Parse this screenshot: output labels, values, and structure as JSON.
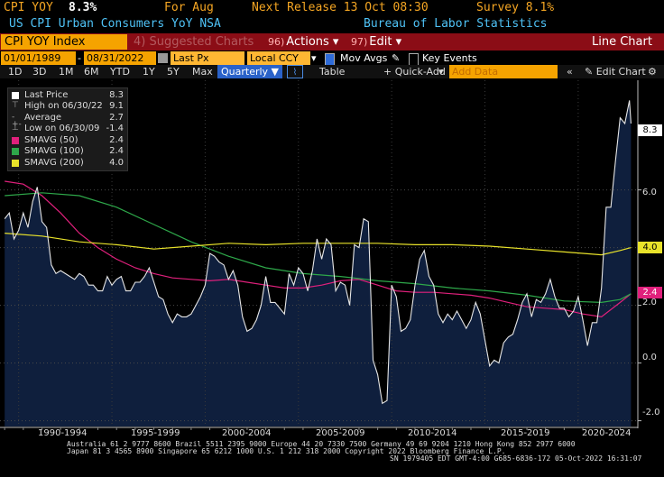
{
  "header": {
    "ticker": "CPI YOY",
    "last": "8.3%",
    "for_label": "For Aug",
    "next_release": "Next Release 13 Oct 08:30",
    "survey": "Survey 8.1%",
    "description": "US CPI Urban Consumers YoY NSA",
    "source": "Bureau of Labor Statistics"
  },
  "toolbar": {
    "index_name": "CPI YOY Index",
    "suggested": "Suggested Charts",
    "actions_num": "96)",
    "actions_label": "Actions",
    "edit_num": "97)",
    "edit_label": "Edit",
    "chart_type": "Line Chart"
  },
  "range": {
    "start": "01/01/1989",
    "end": "08/31/2022",
    "price_field": "Last Px",
    "currency": "Local CCY",
    "mov_avgs": "Mov Avgs",
    "key_events": "Key Events"
  },
  "periods": {
    "items": [
      "1D",
      "3D",
      "1M",
      "6M",
      "YTD",
      "1Y",
      "5Y",
      "Max"
    ],
    "frequency": "Quarterly",
    "table": "Table",
    "quick_add": "+ Quick-Add",
    "add_data_placeholder": "Add Data",
    "edit_chart": "Edit Chart"
  },
  "legend": [
    {
      "label": "Last Price",
      "value": "8.3",
      "color": "#ffffff"
    },
    {
      "label": "High on 06/30/22",
      "value": "9.1",
      "color": "#aaaaaa"
    },
    {
      "label": "Average",
      "value": "2.7",
      "color": "#aaaaaa"
    },
    {
      "label": "Low on 06/30/09",
      "value": "-1.4",
      "color": "#aaaaaa"
    },
    {
      "label": "SMAVG (50)",
      "value": "2.4",
      "color": "#e0207c"
    },
    {
      "label": "SMAVG (100)",
      "value": "2.4",
      "color": "#2ea84a"
    },
    {
      "label": "SMAVG (200)",
      "value": "4.0",
      "color": "#e8e22a"
    }
  ],
  "tags": {
    "last": "8.3",
    "sma200": "4.0",
    "sma50": "2.4"
  },
  "footer": {
    "line1": "Australia 61 2 9777 8600 Brazil 5511 2395 9000 Europe 44 20 7330 7500 Germany 49 69 9204 1210 Hong Kong 852 2977 6000",
    "line2": "Japan 81 3 4565 8900        Singapore 65 6212 1000        U.S. 1 212 318 2000           Copyright 2022 Bloomberg Finance L.P.",
    "line3": "SN 1979405 EDT  GMT-4:00 G685-6836-172 05-Oct-2022 16:31:07"
  },
  "colors": {
    "amber": "#f5a623",
    "red_bar": "#8b0d16",
    "area": "#0f1f3d",
    "sma50": "#e0207c",
    "sma100": "#2ea84a",
    "sma200": "#e8e22a"
  },
  "chart_data": {
    "type": "area",
    "title": "US CPI Urban Consumers YoY NSA",
    "x_labels": [
      "1990-1994",
      "1995-1999",
      "2000-2004",
      "2005-2009",
      "2010-2014",
      "2015-2019",
      "2020-2024"
    ],
    "y_ticks": [
      -2.0,
      0.0,
      2.0,
      4.0,
      6.0
    ],
    "ylim": [
      -2.2,
      9.8
    ],
    "xlim": [
      1988.75,
      2022.9
    ],
    "series": [
      {
        "name": "Last Price",
        "x": [
          1989.0,
          1989.25,
          1989.5,
          1989.75,
          1990.0,
          1990.25,
          1990.5,
          1990.75,
          1991.0,
          1991.25,
          1991.5,
          1991.75,
          1992.0,
          1992.25,
          1992.5,
          1992.75,
          1993.0,
          1993.25,
          1993.5,
          1993.75,
          1994.0,
          1994.25,
          1994.5,
          1994.75,
          1995.0,
          1995.25,
          1995.5,
          1995.75,
          1996.0,
          1996.25,
          1996.5,
          1996.75,
          1997.0,
          1997.25,
          1997.5,
          1997.75,
          1998.0,
          1998.25,
          1998.5,
          1998.75,
          1999.0,
          1999.25,
          1999.5,
          1999.75,
          2000.0,
          2000.25,
          2000.5,
          2000.75,
          2001.0,
          2001.25,
          2001.5,
          2001.75,
          2002.0,
          2002.25,
          2002.5,
          2002.75,
          2003.0,
          2003.25,
          2003.5,
          2003.75,
          2004.0,
          2004.25,
          2004.5,
          2004.75,
          2005.0,
          2005.25,
          2005.5,
          2005.75,
          2006.0,
          2006.25,
          2006.5,
          2006.75,
          2007.0,
          2007.25,
          2007.5,
          2007.75,
          2008.0,
          2008.25,
          2008.5,
          2008.75,
          2009.0,
          2009.25,
          2009.5,
          2009.75,
          2010.0,
          2010.25,
          2010.5,
          2010.75,
          2011.0,
          2011.25,
          2011.5,
          2011.75,
          2012.0,
          2012.25,
          2012.5,
          2012.75,
          2013.0,
          2013.25,
          2013.5,
          2013.75,
          2014.0,
          2014.25,
          2014.5,
          2014.75,
          2015.0,
          2015.25,
          2015.5,
          2015.75,
          2016.0,
          2016.25,
          2016.5,
          2016.75,
          2017.0,
          2017.25,
          2017.5,
          2017.75,
          2018.0,
          2018.25,
          2018.5,
          2018.75,
          2019.0,
          2019.25,
          2019.5,
          2019.75,
          2020.0,
          2020.25,
          2020.5,
          2020.75,
          2021.0,
          2021.25,
          2021.5,
          2021.75,
          2022.0,
          2022.25,
          2022.5,
          2022.58
        ],
        "values": [
          5.0,
          5.2,
          4.3,
          4.6,
          5.2,
          4.7,
          5.6,
          6.1,
          4.9,
          4.7,
          3.4,
          3.1,
          3.2,
          3.1,
          3.0,
          2.9,
          3.1,
          3.0,
          2.7,
          2.7,
          2.5,
          2.5,
          3.0,
          2.7,
          2.9,
          3.0,
          2.5,
          2.5,
          2.8,
          2.8,
          3.0,
          3.3,
          2.8,
          2.3,
          2.2,
          1.7,
          1.4,
          1.7,
          1.6,
          1.6,
          1.7,
          2.0,
          2.3,
          2.7,
          3.8,
          3.7,
          3.5,
          3.4,
          2.9,
          3.2,
          2.7,
          1.6,
          1.1,
          1.2,
          1.5,
          2.0,
          3.0,
          2.1,
          2.1,
          1.9,
          1.7,
          3.1,
          2.7,
          3.3,
          3.1,
          2.5,
          3.2,
          4.3,
          3.6,
          4.3,
          4.1,
          2.5,
          2.8,
          2.7,
          2.0,
          4.1,
          4.0,
          5.0,
          4.9,
          0.1,
          -0.4,
          -1.4,
          -1.3,
          2.7,
          2.3,
          1.1,
          1.2,
          1.5,
          2.7,
          3.6,
          3.9,
          3.0,
          2.7,
          1.7,
          1.4,
          1.7,
          1.5,
          1.8,
          1.5,
          1.2,
          1.5,
          2.1,
          1.7,
          0.8,
          -0.1,
          0.1,
          0.0,
          0.7,
          0.9,
          1.0,
          1.5,
          2.1,
          2.4,
          1.6,
          2.2,
          2.1,
          2.4,
          2.9,
          2.3,
          1.9,
          1.9,
          1.6,
          1.8,
          2.3,
          1.5,
          0.6,
          1.4,
          1.4,
          2.6,
          5.4,
          5.4,
          7.0,
          8.5,
          8.3,
          9.1,
          8.3
        ]
      },
      {
        "name": "SMAVG (50)",
        "x": [
          1989.0,
          1990.0,
          1991.0,
          1992.0,
          1993.0,
          1994.0,
          1995.0,
          1996.0,
          1997.0,
          1998.0,
          1999.0,
          2000.0,
          2001.0,
          2002.0,
          2003.0,
          2004.0,
          2005.0,
          2006.0,
          2007.0,
          2008.0,
          2009.0,
          2010.0,
          2011.0,
          2012.0,
          2013.0,
          2014.0,
          2015.0,
          2016.0,
          2017.0,
          2018.0,
          2019.0,
          2020.0,
          2021.0,
          2022.0,
          2022.58
        ],
        "values": [
          6.3,
          6.2,
          5.8,
          5.2,
          4.5,
          4.0,
          3.6,
          3.3,
          3.1,
          2.95,
          2.9,
          2.85,
          2.9,
          2.8,
          2.7,
          2.6,
          2.6,
          2.7,
          2.85,
          2.9,
          2.7,
          2.5,
          2.45,
          2.45,
          2.4,
          2.35,
          2.25,
          2.1,
          1.95,
          1.9,
          1.85,
          1.7,
          1.6,
          2.1,
          2.4
        ]
      },
      {
        "name": "SMAVG (100)",
        "x": [
          1989.0,
          1991.0,
          1993.0,
          1995.0,
          1997.0,
          1999.0,
          2001.0,
          2003.0,
          2005.0,
          2007.0,
          2009.0,
          2011.0,
          2013.0,
          2015.0,
          2017.0,
          2019.0,
          2021.0,
          2022.0,
          2022.58
        ],
        "values": [
          5.8,
          5.9,
          5.8,
          5.4,
          4.8,
          4.2,
          3.7,
          3.3,
          3.1,
          3.0,
          2.85,
          2.75,
          2.6,
          2.5,
          2.35,
          2.15,
          2.1,
          2.2,
          2.4
        ]
      },
      {
        "name": "SMAVG (200)",
        "x": [
          1989.0,
          1991.0,
          1993.0,
          1995.0,
          1997.0,
          1999.0,
          2001.0,
          2003.0,
          2005.0,
          2007.0,
          2009.0,
          2011.0,
          2013.0,
          2015.0,
          2017.0,
          2019.0,
          2021.0,
          2022.0,
          2022.58
        ],
        "values": [
          4.5,
          4.4,
          4.2,
          4.1,
          3.95,
          4.05,
          4.15,
          4.1,
          4.15,
          4.15,
          4.15,
          4.1,
          4.1,
          4.05,
          3.95,
          3.85,
          3.75,
          3.9,
          4.0
        ]
      }
    ]
  }
}
